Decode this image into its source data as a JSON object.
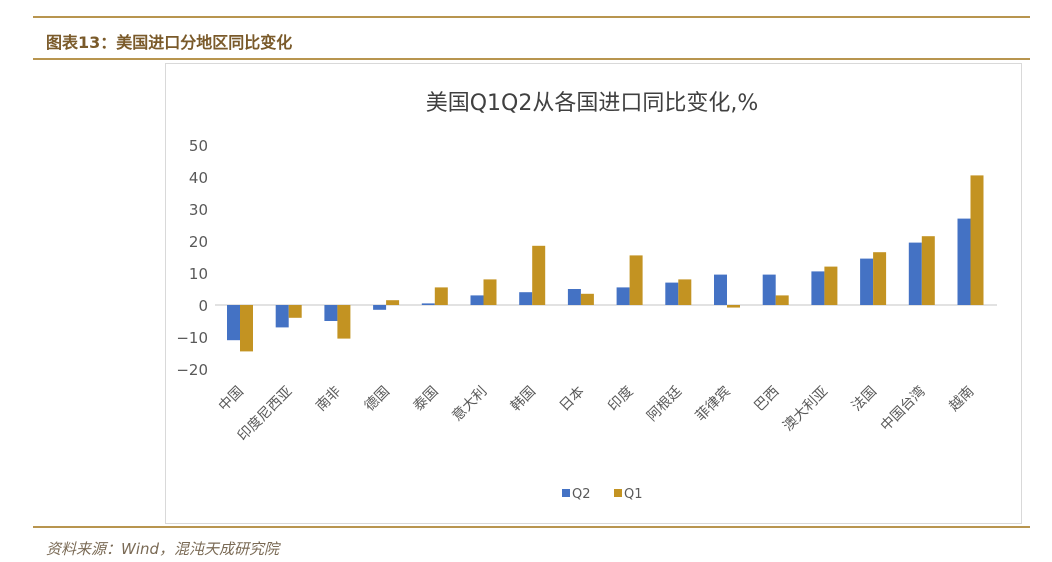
{
  "header": {
    "figure_title": "图表13：美国进口分地区同比变化"
  },
  "footer": {
    "source": "资料来源：Wind，混沌天成研究院"
  },
  "chart_data": {
    "type": "bar",
    "title": "美国Q1Q2从各国进口同比变化,%",
    "categories": [
      "中国",
      "印度尼西亚",
      "南非",
      "德国",
      "泰国",
      "意大利",
      "韩国",
      "日本",
      "印度",
      "阿根廷",
      "菲律宾",
      "巴西",
      "澳大利亚",
      "法国",
      "中国台湾",
      "越南"
    ],
    "series": [
      {
        "name": "Q2",
        "color": "#4472c4",
        "values": [
          -11,
          -7,
          -5,
          -1.5,
          0.5,
          3,
          4,
          5,
          5.5,
          7,
          9.5,
          9.5,
          10.5,
          14.5,
          19.5,
          27
        ]
      },
      {
        "name": "Q1",
        "color": "#c39322",
        "values": [
          -14.5,
          -4,
          -10.5,
          1.5,
          5.5,
          8,
          18.5,
          3.5,
          15.5,
          8,
          -0.8,
          3,
          12,
          16.5,
          21.5,
          40.5
        ]
      }
    ],
    "yticks": [
      "50",
      "40",
      "30",
      "20",
      "10",
      "0",
      "−10",
      "−20"
    ],
    "ylim": [
      -20,
      50
    ],
    "grid": false,
    "legend": "bottom"
  }
}
